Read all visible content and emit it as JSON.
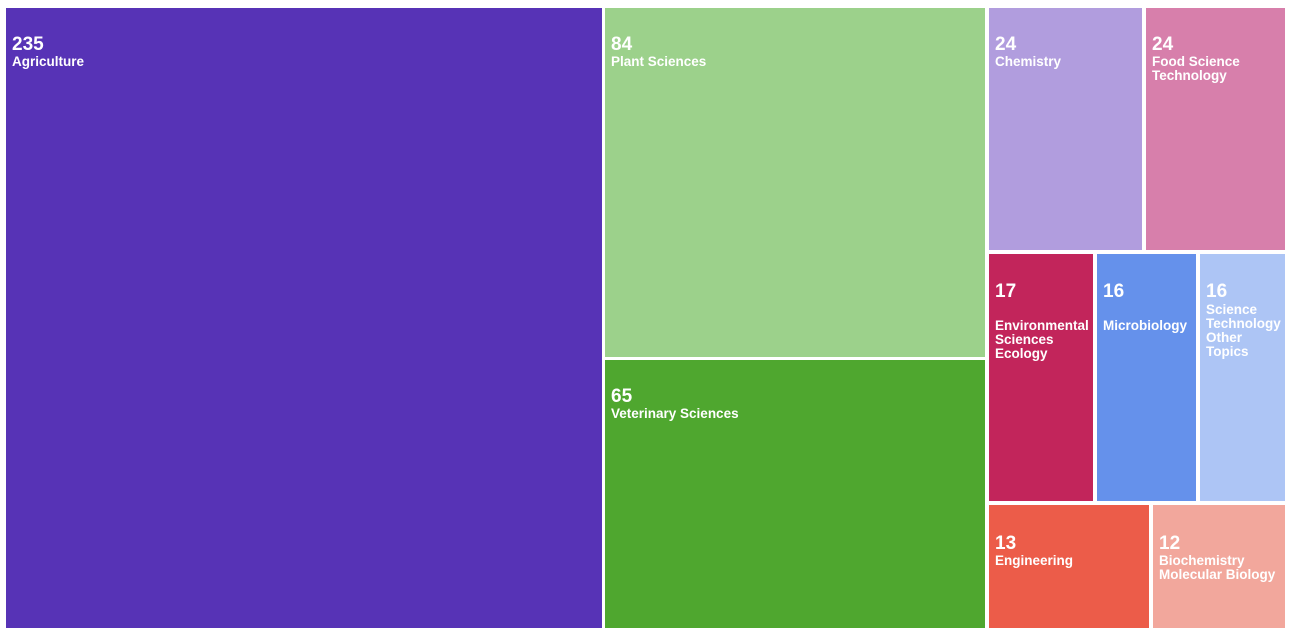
{
  "chart_data": {
    "type": "treemap",
    "title": "",
    "cells": [
      {
        "name": "Agriculture",
        "value": 235,
        "label": "Agriculture",
        "color": "#5733b6"
      },
      {
        "name": "Plant Sciences",
        "value": 84,
        "label": "Plant Sciences",
        "color": "#9cd18b"
      },
      {
        "name": "Veterinary Sciences",
        "value": 65,
        "label": "Veterinary Sciences",
        "color": "#4fa72f"
      },
      {
        "name": "Chemistry",
        "value": 24,
        "label": "Chemistry",
        "color": "#b19dde"
      },
      {
        "name": "Food Science Technology",
        "value": 24,
        "label": "Food Science\nTechnology",
        "color": "#d77fab"
      },
      {
        "name": "Environmental Sciences Ecology",
        "value": 17,
        "label": "Environmental\nSciences\nEcology",
        "color": "#c2255b"
      },
      {
        "name": "Microbiology",
        "value": 16,
        "label": "Microbiology",
        "color": "#6591eb"
      },
      {
        "name": "Science Technology Other Topics",
        "value": 16,
        "label": "Science\nTechnology\nOther\nTopics",
        "color": "#adc5f5"
      },
      {
        "name": "Engineering",
        "value": 13,
        "label": "Engineering",
        "color": "#ec5c49"
      },
      {
        "name": "Biochemistry Molecular Biology",
        "value": 12,
        "label": "Biochemistry\nMolecular Biology",
        "color": "#f2a79c"
      }
    ]
  }
}
